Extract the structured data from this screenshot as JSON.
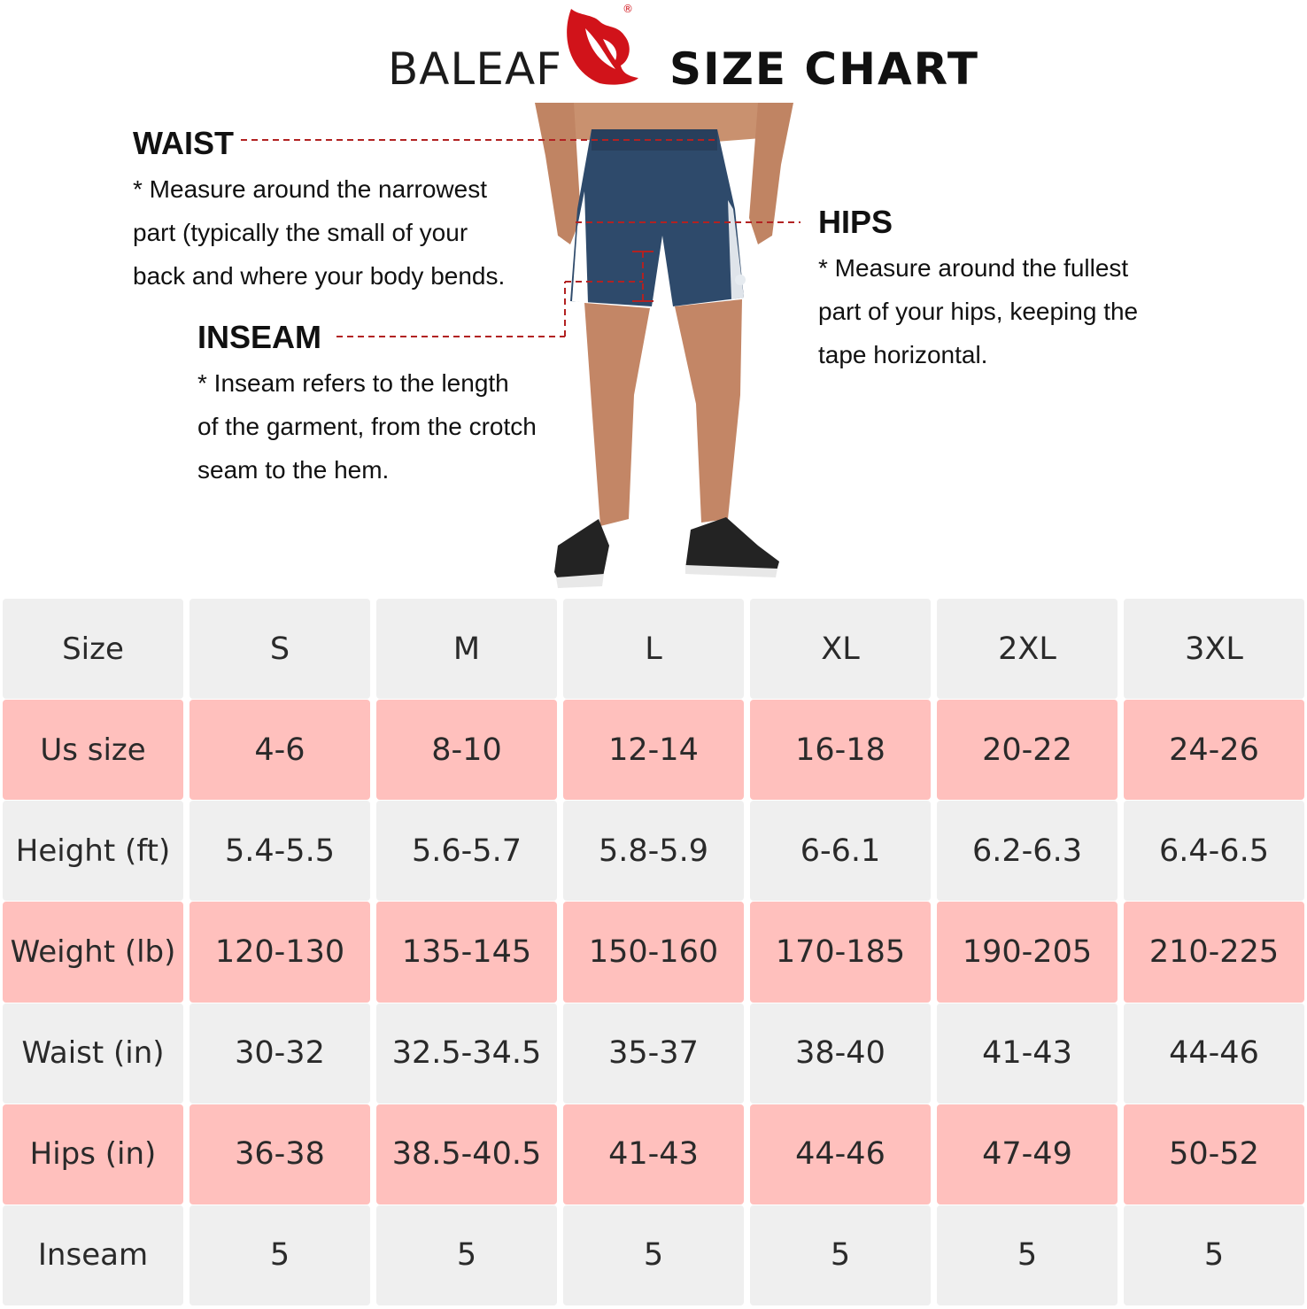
{
  "header": {
    "brand": "BALEAF",
    "registered_mark": "®",
    "title": "SIZE  CHART"
  },
  "colors": {
    "brand_red": "#d1131a",
    "grey_row": "#efefef",
    "pink_row": "#ffc0bd",
    "guide_line": "#b22222",
    "shorts_navy": "#2e4a6b"
  },
  "guide": {
    "waist": {
      "heading": "WAIST",
      "lines": [
        "* Measure around the narrowest",
        "part (typically the small of your",
        "back and where your body bends."
      ]
    },
    "hips": {
      "heading": "HIPS",
      "lines": [
        "* Measure around the fullest",
        "part of your hips, keeping the",
        "tape horizontal."
      ]
    },
    "inseam": {
      "heading": "INSEAM",
      "lines": [
        "* Inseam refers to the length",
        "of the garment, from the crotch",
        "seam to the hem."
      ]
    }
  },
  "table": {
    "rows": [
      {
        "label": "Size",
        "values": [
          "S",
          "M",
          "L",
          "XL",
          "2XL",
          "3XL"
        ]
      },
      {
        "label": "Us size",
        "values": [
          "4-6",
          "8-10",
          "12-14",
          "16-18",
          "20-22",
          "24-26"
        ]
      },
      {
        "label": "Height (ft)",
        "values": [
          "5.4-5.5",
          "5.6-5.7",
          "5.8-5.9",
          "6-6.1",
          "6.2-6.3",
          "6.4-6.5"
        ]
      },
      {
        "label": "Weight (lb)",
        "values": [
          "120-130",
          "135-145",
          "150-160",
          "170-185",
          "190-205",
          "210-225"
        ]
      },
      {
        "label": "Waist (in)",
        "values": [
          "30-32",
          "32.5-34.5",
          "35-37",
          "38-40",
          "41-43",
          "44-46"
        ]
      },
      {
        "label": "Hips (in)",
        "values": [
          "36-38",
          "38.5-40.5",
          "41-43",
          "44-46",
          "47-49",
          "50-52"
        ]
      },
      {
        "label": "Inseam",
        "values": [
          "5",
          "5",
          "5",
          "5",
          "5",
          "5"
        ]
      }
    ]
  }
}
